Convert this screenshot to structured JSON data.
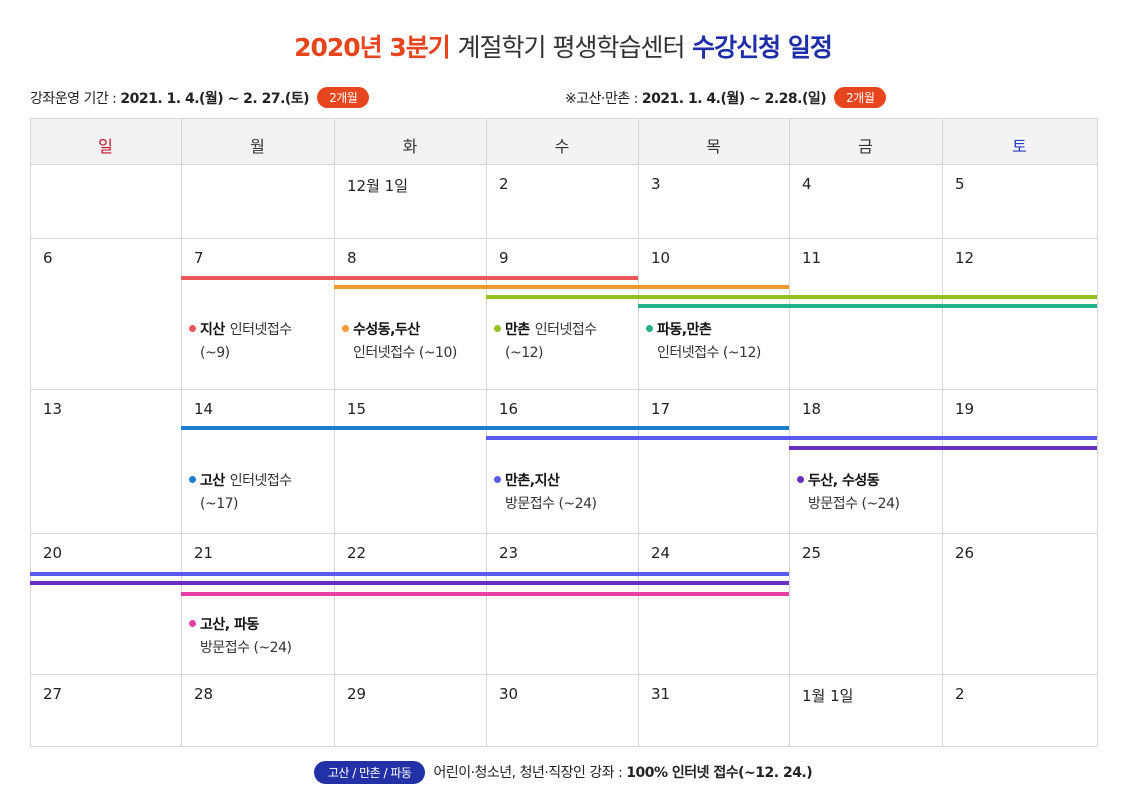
{
  "header": {
    "title_highlight": "2020년 3분기",
    "title_middle": "계절학기 평생학습센터",
    "title_emphasis": "수강신청 일정",
    "period_left": {
      "label": "강좌운영 기간 :",
      "dates": "2021. 1. 4.(월) ~ 2. 27.(토)",
      "badge": "2개월"
    },
    "period_right": {
      "label": "※고산·만촌 :",
      "dates": "2021. 1. 4.(월) ~ 2.28.(일)",
      "badge": "2개월"
    }
  },
  "calendar": {
    "weekdays": [
      "일",
      "월",
      "화",
      "수",
      "목",
      "금",
      "토"
    ],
    "weeks": [
      {
        "days": [
          null,
          null,
          {
            "label": "12월 1일"
          },
          {
            "label": "2"
          },
          {
            "label": "3"
          },
          {
            "label": "4"
          },
          {
            "label": "5"
          }
        ]
      },
      {
        "days": [
          {
            "label": "6"
          },
          {
            "label": "7",
            "note": {
              "color": "#e8585a",
              "bold": "지산",
              "text": "인터넷접수",
              "line2": "(~9)"
            }
          },
          {
            "label": "8",
            "note": {
              "color": "#f39a2e",
              "bold": "수성동,두산",
              "line2": "인터넷접수 (~10)"
            }
          },
          {
            "label": "9",
            "note": {
              "color": "#94c11f",
              "bold": "만촌",
              "text": "인터넷접수",
              "line2": "(~12)"
            }
          },
          {
            "label": "10",
            "note": {
              "color": "#22b18a",
              "bold": "파동,만촌",
              "line2": "인터넷접수 (~12)"
            }
          },
          {
            "label": "11"
          },
          {
            "label": "12"
          }
        ]
      },
      {
        "days": [
          {
            "label": "13"
          },
          {
            "label": "14",
            "note": {
              "color": "#1e7fd0",
              "bold": "고산",
              "text": "인터넷접수",
              "line2": "(~17)"
            }
          },
          {
            "label": "15"
          },
          {
            "label": "16",
            "note": {
              "color": "#5a5af0",
              "bold": "만촌,지산",
              "line2": "방문접수 (~24)"
            }
          },
          {
            "label": "17"
          },
          {
            "label": "18",
            "note": {
              "color": "#6b2fc2",
              "bold": "두산, 수성동",
              "line2": "방문접수 (~24)"
            }
          },
          {
            "label": "19"
          }
        ]
      },
      {
        "days": [
          {
            "label": "20"
          },
          {
            "label": "21",
            "note": {
              "color": "#e83fa5",
              "bold": "고산, 파동",
              "line2": "방문접수 (~24)"
            }
          },
          {
            "label": "22"
          },
          {
            "label": "23"
          },
          {
            "label": "24"
          },
          {
            "label": "25"
          },
          {
            "label": "26"
          }
        ]
      },
      {
        "days": [
          {
            "label": "27"
          },
          {
            "label": "28"
          },
          {
            "label": "29"
          },
          {
            "label": "30"
          },
          {
            "label": "31"
          },
          {
            "label": "1월 1일"
          },
          {
            "label": "2"
          }
        ]
      }
    ]
  },
  "footer": {
    "badge": "고산 / 만촌 / 파동",
    "text": "어린이·청소년, 청년·직장인 강좌 :",
    "bold": "100% 인터넷 접수(~12. 24.)"
  }
}
